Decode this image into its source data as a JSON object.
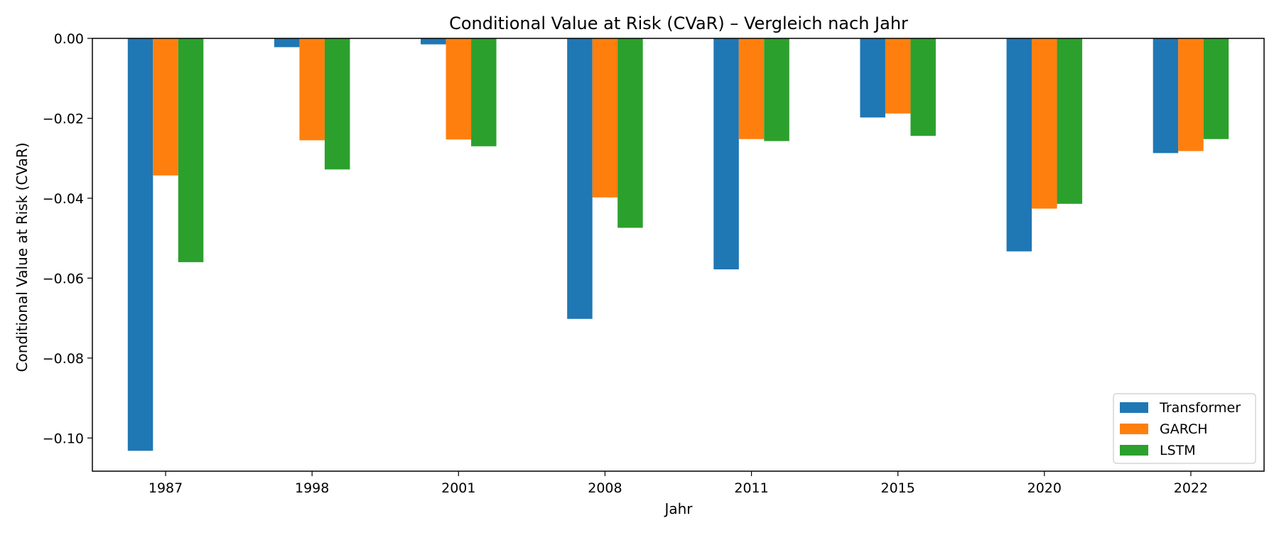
{
  "chart_data": {
    "type": "bar",
    "title": "Conditional Value at Risk (CVaR) – Vergleich nach Jahr",
    "xlabel": "Jahr",
    "ylabel": "Conditional Value at Risk (CVaR)",
    "categories": [
      "1987",
      "1998",
      "2001",
      "2008",
      "2011",
      "2015",
      "2020",
      "2022"
    ],
    "series": [
      {
        "name": "Transformer",
        "color": "#1f77b4",
        "values": [
          -0.1032,
          -0.0022,
          -0.0015,
          -0.0702,
          -0.0578,
          -0.0198,
          -0.0533,
          -0.0287
        ]
      },
      {
        "name": "GARCH",
        "color": "#ff7f0e",
        "values": [
          -0.0343,
          -0.0255,
          -0.0253,
          -0.0398,
          -0.0252,
          -0.0188,
          -0.0426,
          -0.0282
        ]
      },
      {
        "name": "LSTM",
        "color": "#2ca02c",
        "values": [
          -0.056,
          -0.0328,
          -0.027,
          -0.0474,
          -0.0257,
          -0.0244,
          -0.0414,
          -0.0252
        ]
      }
    ],
    "ylim": [
      -0.1083,
      0.0
    ],
    "yticks": [
      "0.00",
      "−0.02",
      "−0.04",
      "−0.06",
      "−0.08",
      "−0.10"
    ],
    "ytick_values": [
      0.0,
      -0.02,
      -0.04,
      -0.06,
      -0.08,
      -0.1
    ],
    "grid": false,
    "legend_position": "lower-right"
  }
}
